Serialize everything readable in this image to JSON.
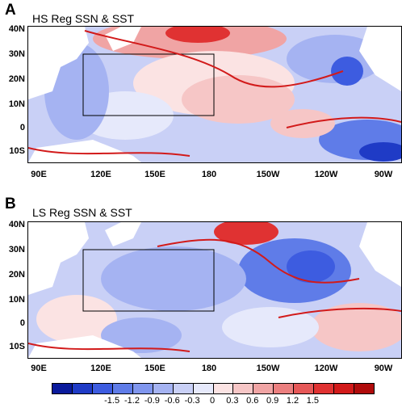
{
  "panels": [
    {
      "letter": "A",
      "title": "HS Reg SSN & SST"
    },
    {
      "letter": "B",
      "title": "LS Reg SSN & SST"
    }
  ],
  "lat_labels": [
    "40N",
    "30N",
    "20N",
    "10N",
    "0",
    "10S"
  ],
  "lon_labels": [
    "90E",
    "120E",
    "150E",
    "180",
    "150W",
    "120W",
    "90W"
  ],
  "colorbar": {
    "labels": [
      "-1.5",
      "-1.2",
      "-0.9",
      "-0.6",
      "-0.3",
      "0",
      "0.3",
      "0.6",
      "0.9",
      "1.2",
      "1.5"
    ],
    "colors": [
      "#0a1a9c",
      "#1f3bc6",
      "#3d5ce0",
      "#5f7ce8",
      "#8096ee",
      "#a5b3f2",
      "#c9d0f6",
      "#e6e9fb",
      "#fbe3e3",
      "#f6c6c6",
      "#f0a4a4",
      "#eb7f7f",
      "#e65858",
      "#e03232",
      "#d21a1a",
      "#b00b0b"
    ]
  }
}
